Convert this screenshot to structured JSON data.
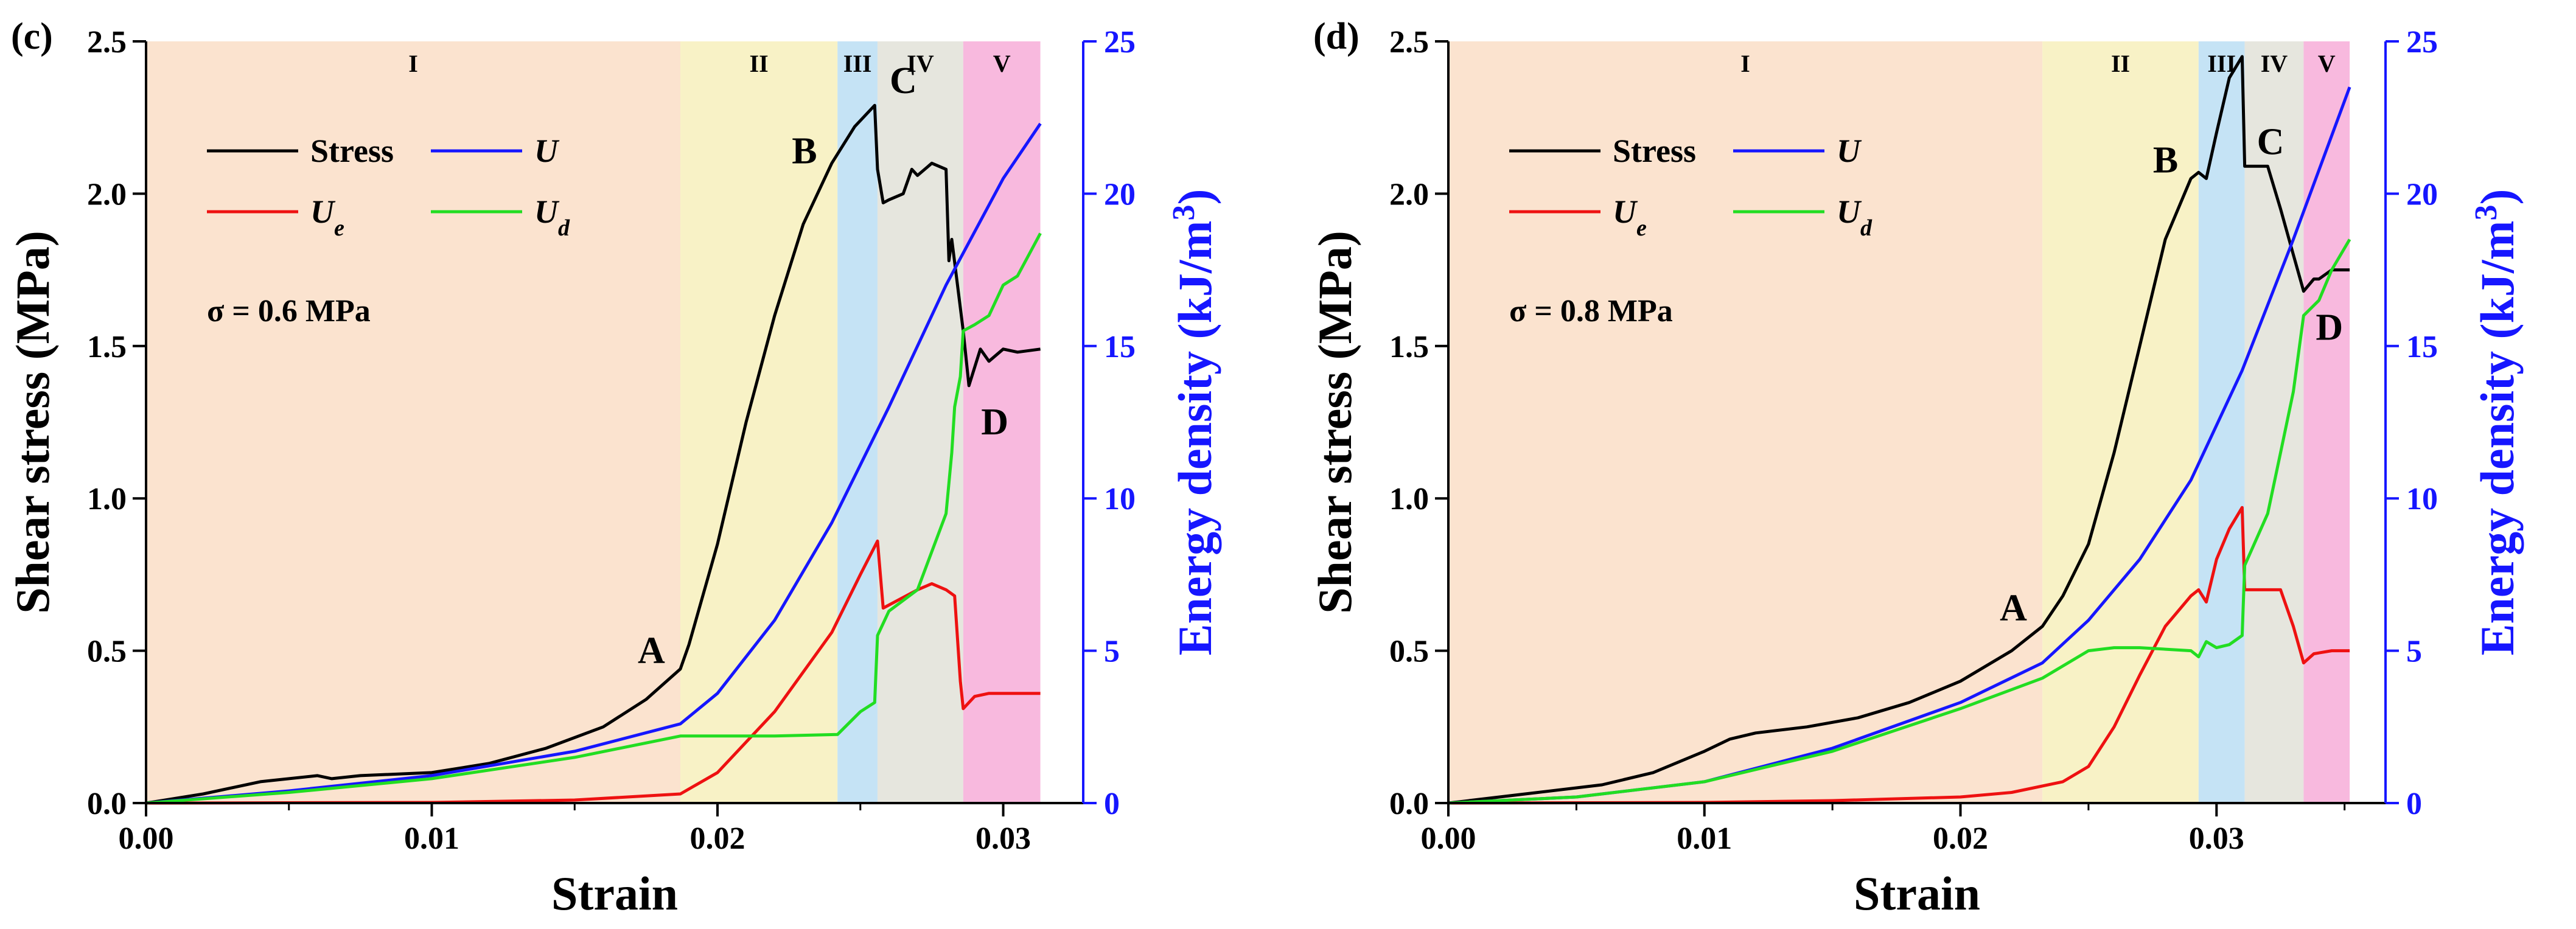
{
  "chart_data": [
    {
      "type": "line",
      "panel_label": "(c)",
      "xlabel": "Strain",
      "ylabel_left": "Shear stress (MPa)",
      "ylabel_right": "Energy density (kJ/m3)",
      "xlim": [
        0,
        0.0328
      ],
      "ylim_left": [
        0,
        2.5
      ],
      "ylim_right": [
        0,
        25
      ],
      "x_ticks": [
        "0.00",
        "0.01",
        "0.02",
        "0.03"
      ],
      "y_left_ticks": [
        "0.0",
        "0.5",
        "1.0",
        "1.5",
        "2.0",
        "2.5"
      ],
      "y_right_ticks": [
        "0",
        "5",
        "10",
        "15",
        "20",
        "25"
      ],
      "annotation": "σ = 0.6 MPa",
      "stages": [
        {
          "label": "I",
          "start": 0,
          "end": 0.0187,
          "color": "#fbe3cf"
        },
        {
          "label": "II",
          "start": 0.0187,
          "end": 0.0242,
          "color": "#f8f2c6"
        },
        {
          "label": "III",
          "start": 0.0242,
          "end": 0.0256,
          "color": "#c5e3f5"
        },
        {
          "label": "IV",
          "start": 0.0256,
          "end": 0.0286,
          "color": "#e6e6de"
        },
        {
          "label": "V",
          "start": 0.0286,
          "end": 0.0313,
          "color": "#f8b9de"
        }
      ],
      "points": [
        {
          "label": "A",
          "x": 0.0187,
          "y": 0.44
        },
        {
          "label": "B",
          "x": 0.0242,
          "y": 2.1
        },
        {
          "label": "C",
          "x": 0.0256,
          "y": 2.29
        },
        {
          "label": "D",
          "x": 0.0288,
          "y": 1.37
        }
      ],
      "series": [
        {
          "name": "Stress",
          "axis": "left",
          "color": "#000000",
          "x": [
            0,
            0.002,
            0.004,
            0.006,
            0.0065,
            0.0075,
            0.01,
            0.012,
            0.014,
            0.016,
            0.0175,
            0.0187,
            0.019,
            0.02,
            0.021,
            0.022,
            0.023,
            0.024,
            0.0248,
            0.0255,
            0.0256,
            0.0258,
            0.026,
            0.0265,
            0.0268,
            0.027,
            0.0275,
            0.028,
            0.0281,
            0.0282,
            0.0284,
            0.0286,
            0.0288,
            0.0292,
            0.0295,
            0.03,
            0.0305,
            0.0313
          ],
          "y": [
            0,
            0.03,
            0.07,
            0.09,
            0.08,
            0.09,
            0.1,
            0.13,
            0.18,
            0.25,
            0.34,
            0.44,
            0.52,
            0.85,
            1.25,
            1.6,
            1.9,
            2.1,
            2.22,
            2.29,
            2.08,
            1.97,
            1.98,
            2.0,
            2.08,
            2.06,
            2.1,
            2.08,
            1.78,
            1.85,
            1.7,
            1.55,
            1.37,
            1.49,
            1.45,
            1.49,
            1.48,
            1.49
          ]
        },
        {
          "name": "U",
          "axis": "right",
          "color": "#1616ff",
          "x": [
            0,
            0.005,
            0.01,
            0.015,
            0.0187,
            0.02,
            0.022,
            0.024,
            0.026,
            0.028,
            0.03,
            0.0313
          ],
          "y": [
            0,
            0.4,
            0.9,
            1.7,
            2.6,
            3.6,
            6.0,
            9.2,
            13.0,
            17.0,
            20.5,
            22.3
          ]
        },
        {
          "name": "Ue",
          "axis": "right",
          "color": "#ee1111",
          "x": [
            0,
            0.01,
            0.015,
            0.0187,
            0.02,
            0.022,
            0.024,
            0.025,
            0.0256,
            0.0258,
            0.026,
            0.027,
            0.0275,
            0.028,
            0.0283,
            0.0285,
            0.0286,
            0.029,
            0.0295,
            0.03,
            0.0313
          ],
          "y": [
            0,
            0.02,
            0.1,
            0.3,
            1.0,
            3.0,
            5.6,
            7.5,
            8.6,
            6.4,
            6.5,
            7.0,
            7.2,
            7.0,
            6.8,
            4.0,
            3.1,
            3.5,
            3.6,
            3.6,
            3.6
          ]
        },
        {
          "name": "Ud",
          "axis": "right",
          "color": "#22dd22",
          "x": [
            0,
            0.005,
            0.01,
            0.015,
            0.0187,
            0.02,
            0.022,
            0.0242,
            0.025,
            0.0255,
            0.0256,
            0.026,
            0.027,
            0.028,
            0.0282,
            0.0283,
            0.0285,
            0.0286,
            0.029,
            0.0295,
            0.03,
            0.0305,
            0.0313
          ],
          "y": [
            0,
            0.35,
            0.8,
            1.5,
            2.2,
            2.2,
            2.2,
            2.25,
            3.0,
            3.3,
            5.5,
            6.3,
            7.0,
            9.5,
            11.5,
            13.0,
            14.0,
            15.5,
            15.7,
            16.0,
            17.0,
            17.3,
            18.7
          ]
        }
      ]
    },
    {
      "type": "line",
      "panel_label": "(d)",
      "xlabel": "Strain",
      "ylabel_left": "Shear stress (MPa)",
      "ylabel_right": "Energy density (kJ/m3)",
      "xlim": [
        0,
        0.0366
      ],
      "ylim_left": [
        0,
        2.5
      ],
      "ylim_right": [
        0,
        25
      ],
      "x_ticks": [
        "0.00",
        "0.01",
        "0.02",
        "0.03"
      ],
      "y_left_ticks": [
        "0.0",
        "0.5",
        "1.0",
        "1.5",
        "2.0",
        "2.5"
      ],
      "y_right_ticks": [
        "0",
        "5",
        "10",
        "15",
        "20",
        "25"
      ],
      "annotation": "σ = 0.8 MPa",
      "stages": [
        {
          "label": "I",
          "start": 0,
          "end": 0.0232,
          "color": "#fbe3cf"
        },
        {
          "label": "II",
          "start": 0.0232,
          "end": 0.0293,
          "color": "#f8f2c6"
        },
        {
          "label": "III",
          "start": 0.0293,
          "end": 0.0311,
          "color": "#c5e3f5"
        },
        {
          "label": "IV",
          "start": 0.0311,
          "end": 0.0334,
          "color": "#e6e6de"
        },
        {
          "label": "V",
          "start": 0.0334,
          "end": 0.0352,
          "color": "#f8b9de"
        }
      ],
      "points": [
        {
          "label": "A",
          "x": 0.0232,
          "y": 0.58
        },
        {
          "label": "B",
          "x": 0.0293,
          "y": 2.07
        },
        {
          "label": "C",
          "x": 0.0311,
          "y": 2.09
        },
        {
          "label": "D",
          "x": 0.0334,
          "y": 1.68
        }
      ],
      "series": [
        {
          "name": "Stress",
          "axis": "left",
          "color": "#000000",
          "x": [
            0,
            0.003,
            0.006,
            0.008,
            0.01,
            0.011,
            0.012,
            0.014,
            0.016,
            0.018,
            0.02,
            0.022,
            0.0232,
            0.024,
            0.025,
            0.026,
            0.027,
            0.028,
            0.029,
            0.0293,
            0.0296,
            0.03,
            0.0305,
            0.031,
            0.0311,
            0.0315,
            0.032,
            0.0325,
            0.033,
            0.0334,
            0.0338,
            0.034,
            0.0345,
            0.0352
          ],
          "y": [
            0,
            0.03,
            0.06,
            0.1,
            0.17,
            0.21,
            0.23,
            0.25,
            0.28,
            0.33,
            0.4,
            0.5,
            0.58,
            0.68,
            0.85,
            1.15,
            1.5,
            1.85,
            2.05,
            2.07,
            2.05,
            2.2,
            2.38,
            2.45,
            2.09,
            2.09,
            2.09,
            1.95,
            1.8,
            1.68,
            1.72,
            1.72,
            1.75,
            1.75
          ]
        },
        {
          "name": "U",
          "axis": "right",
          "color": "#1616ff",
          "x": [
            0,
            0.005,
            0.01,
            0.015,
            0.02,
            0.0232,
            0.025,
            0.027,
            0.029,
            0.031,
            0.033,
            0.0352
          ],
          "y": [
            0,
            0.2,
            0.7,
            1.8,
            3.3,
            4.6,
            6.0,
            8.0,
            10.6,
            14.2,
            18.5,
            23.5
          ]
        },
        {
          "name": "Ue",
          "axis": "right",
          "color": "#ee1111",
          "x": [
            0,
            0.01,
            0.015,
            0.02,
            0.022,
            0.024,
            0.025,
            0.026,
            0.027,
            0.028,
            0.029,
            0.0293,
            0.0296,
            0.03,
            0.0305,
            0.031,
            0.0311,
            0.032,
            0.0325,
            0.033,
            0.0334,
            0.0338,
            0.0345,
            0.0352
          ],
          "y": [
            0,
            0.02,
            0.08,
            0.2,
            0.35,
            0.7,
            1.2,
            2.5,
            4.2,
            5.8,
            6.8,
            7.0,
            6.6,
            8.0,
            9.0,
            9.7,
            7.0,
            7.0,
            7.0,
            5.8,
            4.6,
            4.9,
            5.0,
            5.0
          ]
        },
        {
          "name": "Ud",
          "axis": "right",
          "color": "#22dd22",
          "x": [
            0,
            0.005,
            0.01,
            0.015,
            0.02,
            0.0232,
            0.025,
            0.026,
            0.027,
            0.028,
            0.029,
            0.0293,
            0.0296,
            0.03,
            0.0305,
            0.031,
            0.0311,
            0.032,
            0.0325,
            0.033,
            0.0334,
            0.034,
            0.0345,
            0.0352
          ],
          "y": [
            0,
            0.2,
            0.7,
            1.7,
            3.1,
            4.1,
            5.0,
            5.1,
            5.1,
            5.05,
            5.0,
            4.8,
            5.3,
            5.1,
            5.2,
            5.5,
            7.8,
            9.5,
            11.5,
            13.5,
            16.0,
            16.5,
            17.5,
            18.5
          ]
        }
      ]
    }
  ]
}
